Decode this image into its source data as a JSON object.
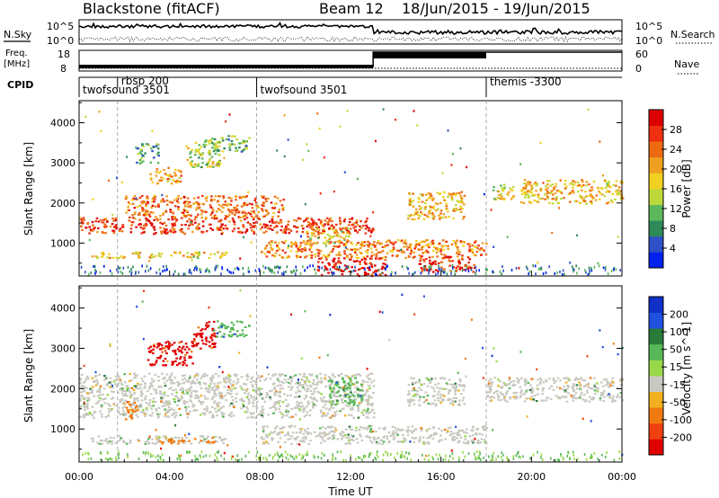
{
  "header": {
    "station": "Blackstone (fitACF)",
    "beam": "Beam 12",
    "date_range": "18/Jun/2015 - 19/Jun/2015"
  },
  "top_panels": {
    "nsky_label": "N.Sky",
    "nsky_top": "10^5",
    "nsky_bottom": "10^0",
    "nsearch_label": "N.Search",
    "nsearch_top": "10^5",
    "nsearch_bottom": "10^0",
    "freq_label": "Freq.",
    "freq_unit": "[MHz]",
    "freq_top": "18",
    "freq_bottom": "8",
    "nave_label": "Nave",
    "nave_top": "60",
    "nave_bottom": "0",
    "cpid_label": "CPID",
    "cpid_segments": [
      {
        "label": "twofsound 3501",
        "start_hr": 0.0
      },
      {
        "label": "rbsp 200",
        "start_hr": 1.7
      },
      {
        "label": "twofsound 3501",
        "start_hr": 7.85
      },
      {
        "label": "themis -3300",
        "start_hr": 18.0
      }
    ]
  },
  "chart_data": [
    {
      "type": "heatmap",
      "name": "power",
      "title": "",
      "xlabel": "",
      "ylabel": "Slant Range [km]",
      "xlim_hours": [
        0,
        24
      ],
      "ylim": [
        180,
        4550
      ],
      "yticks": [
        1000,
        2000,
        3000,
        4000
      ],
      "colorbar": {
        "label": "Power [dB]",
        "ticks": [
          "4",
          "8",
          "12",
          "16",
          "20",
          "24",
          "28"
        ],
        "colors": [
          "#0022ee",
          "#3050c8",
          "#2f8a5a",
          "#5cb85c",
          "#bcd83a",
          "#f0d020",
          "#f0a020",
          "#ee6a10",
          "#ee3010",
          "#dd0000"
        ]
      },
      "regions": [
        {
          "t0": 0.0,
          "t1": 13.0,
          "r0": 1250,
          "r1": 1650,
          "level": 0.85
        },
        {
          "t0": 2.0,
          "t1": 9.0,
          "r0": 1650,
          "r1": 2200,
          "level": 0.75
        },
        {
          "t0": 0.5,
          "t1": 6.5,
          "r0": 650,
          "r1": 800,
          "level": 0.55
        },
        {
          "t0": 3.0,
          "t1": 4.5,
          "r0": 2500,
          "r1": 2900,
          "level": 0.65
        },
        {
          "t0": 4.7,
          "t1": 6.2,
          "r0": 2900,
          "r1": 3600,
          "level": 0.45
        },
        {
          "t0": 8.0,
          "t1": 18.0,
          "r0": 650,
          "r1": 1100,
          "level": 0.7
        },
        {
          "t0": 10.5,
          "t1": 13.5,
          "r0": 200,
          "r1": 650,
          "level": 0.95
        },
        {
          "t0": 15.0,
          "t1": 17.5,
          "r0": 300,
          "r1": 700,
          "level": 0.9
        },
        {
          "t0": 14.5,
          "t1": 17.0,
          "r0": 1600,
          "r1": 2300,
          "level": 0.6
        },
        {
          "t0": 10.0,
          "t1": 12.0,
          "r0": 1000,
          "r1": 1400,
          "level": 0.55
        },
        {
          "t0": 19.5,
          "t1": 24.0,
          "r0": 2000,
          "r1": 2600,
          "level": 0.6
        },
        {
          "t0": 18.2,
          "t1": 19.2,
          "r0": 2100,
          "r1": 2500,
          "level": 0.5
        },
        {
          "t0": 5.8,
          "t1": 7.5,
          "r0": 3300,
          "r1": 3700,
          "level": 0.35
        },
        {
          "t0": 2.5,
          "t1": 3.5,
          "r0": 3000,
          "r1": 3500,
          "level": 0.3
        }
      ]
    },
    {
      "type": "heatmap",
      "name": "velocity",
      "title": "",
      "xlabel": "Time UT",
      "ylabel": "Slant Range [km]",
      "xlim_hours": [
        0,
        24
      ],
      "ylim": [
        180,
        4550
      ],
      "yticks": [
        1000,
        2000,
        3000,
        4000
      ],
      "xticks": [
        "00:00",
        "04:00",
        "08:00",
        "12:00",
        "16:00",
        "20:00",
        "00:00"
      ],
      "colorbar": {
        "label": "Velocity [m s^-1]",
        "ticks": [
          "200",
          "100",
          "50",
          "15",
          "-15",
          "-50",
          "-100",
          "-200"
        ],
        "colors": [
          "#1030c8",
          "#2050e0",
          "#2a7a3a",
          "#58b858",
          "#98d848",
          "#c8c8c0",
          "#f0b020",
          "#f07a10",
          "#f04010",
          "#e00000"
        ]
      },
      "regions": [
        {
          "t0": 0.0,
          "t1": 13.0,
          "r0": 1300,
          "r1": 2400,
          "level": 0.5
        },
        {
          "t0": 0.5,
          "t1": 6.5,
          "r0": 650,
          "r1": 850,
          "level": 0.5
        },
        {
          "t0": 3.5,
          "t1": 6.0,
          "r0": 650,
          "r1": 780,
          "level": 0.7
        },
        {
          "t0": 8.0,
          "t1": 18.0,
          "r0": 650,
          "r1": 1100,
          "level": 0.5
        },
        {
          "t0": 3.0,
          "t1": 5.0,
          "r0": 2600,
          "r1": 3200,
          "level": 0.98
        },
        {
          "t0": 5.0,
          "t1": 6.0,
          "r0": 3000,
          "r1": 3700,
          "level": 0.95
        },
        {
          "t0": 14.5,
          "t1": 17.0,
          "r0": 1600,
          "r1": 2300,
          "level": 0.5
        },
        {
          "t0": 18.0,
          "t1": 24.0,
          "r0": 1700,
          "r1": 2300,
          "level": 0.5
        },
        {
          "t0": 6.0,
          "t1": 7.5,
          "r0": 3300,
          "r1": 3700,
          "level": 0.3
        },
        {
          "t0": 11.0,
          "t1": 12.5,
          "r0": 1600,
          "r1": 2300,
          "level": 0.3
        },
        {
          "t0": 2.0,
          "t1": 2.6,
          "r0": 1250,
          "r1": 1700,
          "level": 0.7
        }
      ]
    }
  ]
}
